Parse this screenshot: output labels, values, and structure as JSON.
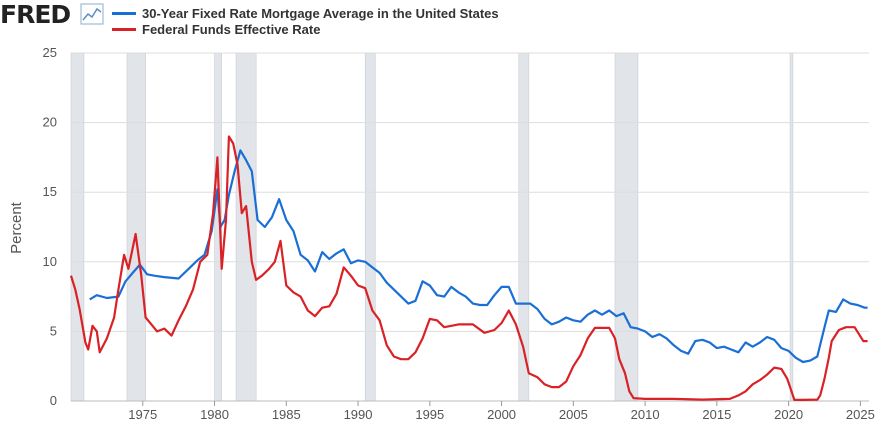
{
  "header": {
    "logo_text": "FRED",
    "logo_icon": "line-chart-icon"
  },
  "colors": {
    "mortgage": "#1a6fd6",
    "fedfunds": "#d92126",
    "recession": "#e1e4e8",
    "grid": "#dddddd",
    "text": "#555555"
  },
  "chart_data": {
    "type": "line",
    "ylabel": "Percent",
    "xlim": [
      1970.0,
      2025.6
    ],
    "ylim": [
      0,
      25
    ],
    "yticks": [
      0,
      5,
      10,
      15,
      20,
      25
    ],
    "xticks": [
      1975,
      1980,
      1985,
      1990,
      1995,
      2000,
      2005,
      2010,
      2015,
      2020,
      2025
    ],
    "grid": true,
    "legend_position": "top-left",
    "recessions": [
      [
        1970.0,
        1970.9
      ],
      [
        1973.9,
        1975.2
      ],
      [
        1980.0,
        1980.5
      ],
      [
        1981.5,
        1982.9
      ],
      [
        1990.5,
        1991.2
      ],
      [
        2001.2,
        2001.9
      ],
      [
        2007.9,
        2009.5
      ],
      [
        2020.1,
        2020.3
      ]
    ],
    "series": [
      {
        "name": "30-Year Fixed Rate Mortgage Average in the United States",
        "color": "#1a6fd6",
        "x": [
          1971.3,
          1971.8,
          1972.5,
          1973.3,
          1973.8,
          1974.3,
          1974.8,
          1975.3,
          1975.8,
          1976.5,
          1977.5,
          1978.3,
          1978.8,
          1979.3,
          1979.8,
          1980.2,
          1980.4,
          1980.7,
          1981.0,
          1981.4,
          1981.8,
          1982.2,
          1982.6,
          1983.0,
          1983.5,
          1984.0,
          1984.5,
          1985.0,
          1985.5,
          1986.0,
          1986.5,
          1987.0,
          1987.5,
          1988.0,
          1988.5,
          1989.0,
          1989.5,
          1990.0,
          1990.5,
          1991.0,
          1991.5,
          1992.0,
          1992.5,
          1993.0,
          1993.5,
          1994.0,
          1994.5,
          1995.0,
          1995.5,
          1996.0,
          1996.5,
          1997.0,
          1997.5,
          1998.0,
          1998.5,
          1999.0,
          1999.5,
          2000.0,
          2000.5,
          2001.0,
          2001.5,
          2002.0,
          2002.5,
          2003.0,
          2003.5,
          2004.0,
          2004.5,
          2005.0,
          2005.5,
          2006.0,
          2006.5,
          2007.0,
          2007.5,
          2008.0,
          2008.5,
          2009.0,
          2009.5,
          2010.0,
          2010.5,
          2011.0,
          2011.5,
          2012.0,
          2012.5,
          2013.0,
          2013.5,
          2014.0,
          2014.5,
          2015.0,
          2015.5,
          2016.0,
          2016.5,
          2017.0,
          2017.5,
          2018.0,
          2018.5,
          2019.0,
          2019.5,
          2020.0,
          2020.5,
          2021.0,
          2021.5,
          2022.0,
          2022.5,
          2022.8,
          2023.3,
          2023.8,
          2024.3,
          2024.8,
          2025.3,
          2025.5
        ],
        "values": [
          7.3,
          7.6,
          7.4,
          7.5,
          8.6,
          9.2,
          9.8,
          9.1,
          9.0,
          8.9,
          8.8,
          9.6,
          10.1,
          10.5,
          12.2,
          15.2,
          12.5,
          13.0,
          14.8,
          16.5,
          18.0,
          17.3,
          16.5,
          13.0,
          12.5,
          13.2,
          14.5,
          13.0,
          12.2,
          10.5,
          10.1,
          9.3,
          10.7,
          10.2,
          10.6,
          10.9,
          9.9,
          10.1,
          10.0,
          9.6,
          9.2,
          8.5,
          8.0,
          7.5,
          7.0,
          7.2,
          8.6,
          8.3,
          7.6,
          7.5,
          8.2,
          7.8,
          7.5,
          7.0,
          6.9,
          6.9,
          7.6,
          8.2,
          8.2,
          7.0,
          7.0,
          7.0,
          6.6,
          5.9,
          5.5,
          5.7,
          6.0,
          5.8,
          5.7,
          6.2,
          6.5,
          6.2,
          6.5,
          6.1,
          6.3,
          5.3,
          5.2,
          5.0,
          4.6,
          4.8,
          4.5,
          4.0,
          3.6,
          3.4,
          4.3,
          4.4,
          4.2,
          3.8,
          3.9,
          3.7,
          3.5,
          4.2,
          3.9,
          4.2,
          4.6,
          4.4,
          3.8,
          3.6,
          3.1,
          2.8,
          2.9,
          3.2,
          5.3,
          6.5,
          6.4,
          7.3,
          7.0,
          6.9,
          6.7,
          6.7
        ]
      },
      {
        "name": "Federal Funds Effective Rate",
        "color": "#d92126",
        "x": [
          1970.0,
          1970.3,
          1970.6,
          1971.0,
          1971.2,
          1971.5,
          1971.8,
          1972.0,
          1972.5,
          1973.0,
          1973.3,
          1973.7,
          1974.0,
          1974.5,
          1974.9,
          1975.2,
          1975.6,
          1976.0,
          1976.5,
          1977.0,
          1977.5,
          1978.0,
          1978.5,
          1979.0,
          1979.5,
          1979.9,
          1980.2,
          1980.5,
          1980.8,
          1981.0,
          1981.3,
          1981.6,
          1981.9,
          1982.2,
          1982.6,
          1982.9,
          1983.3,
          1983.8,
          1984.2,
          1984.6,
          1985.0,
          1985.5,
          1986.0,
          1986.5,
          1987.0,
          1987.5,
          1988.0,
          1988.5,
          1989.0,
          1989.5,
          1990.0,
          1990.5,
          1991.0,
          1991.5,
          1992.0,
          1992.5,
          1993.0,
          1993.5,
          1994.0,
          1994.5,
          1995.0,
          1995.5,
          1996.0,
          1997.0,
          1998.0,
          1998.8,
          1999.5,
          2000.0,
          2000.5,
          2001.0,
          2001.5,
          2001.9,
          2002.5,
          2003.0,
          2003.5,
          2004.0,
          2004.5,
          2005.0,
          2005.5,
          2006.0,
          2006.5,
          2007.0,
          2007.5,
          2007.9,
          2008.2,
          2008.6,
          2008.9,
          2009.2,
          2010.0,
          2012.0,
          2014.0,
          2015.9,
          2016.5,
          2017.0,
          2017.5,
          2018.0,
          2018.5,
          2019.0,
          2019.5,
          2019.9,
          2020.2,
          2020.4,
          2021.0,
          2022.0,
          2022.2,
          2022.5,
          2022.8,
          2023.0,
          2023.5,
          2024.0,
          2024.6,
          2024.9,
          2025.2,
          2025.5
        ],
        "values": [
          9.0,
          8.0,
          6.6,
          4.2,
          3.7,
          5.4,
          5.0,
          3.5,
          4.5,
          6.0,
          8.0,
          10.5,
          9.5,
          12.0,
          9.0,
          6.0,
          5.5,
          5.0,
          5.2,
          4.7,
          5.8,
          6.8,
          8.0,
          10.0,
          10.5,
          13.5,
          17.5,
          9.5,
          13.0,
          19.0,
          18.5,
          17.0,
          13.5,
          14.0,
          10.0,
          8.7,
          9.0,
          9.5,
          10.0,
          11.5,
          8.3,
          7.8,
          7.5,
          6.5,
          6.1,
          6.7,
          6.8,
          7.7,
          9.6,
          9.0,
          8.3,
          8.1,
          6.5,
          5.8,
          4.0,
          3.2,
          3.0,
          3.0,
          3.5,
          4.5,
          5.9,
          5.8,
          5.3,
          5.5,
          5.5,
          4.9,
          5.1,
          5.6,
          6.5,
          5.5,
          3.9,
          2.0,
          1.7,
          1.2,
          1.0,
          1.0,
          1.4,
          2.5,
          3.3,
          4.5,
          5.25,
          5.25,
          5.25,
          4.5,
          3.0,
          2.0,
          0.7,
          0.2,
          0.15,
          0.15,
          0.1,
          0.15,
          0.4,
          0.7,
          1.2,
          1.5,
          1.9,
          2.4,
          2.3,
          1.6,
          0.7,
          0.08,
          0.08,
          0.1,
          0.4,
          1.6,
          3.1,
          4.3,
          5.1,
          5.3,
          5.3,
          4.8,
          4.3,
          4.3
        ]
      }
    ]
  }
}
